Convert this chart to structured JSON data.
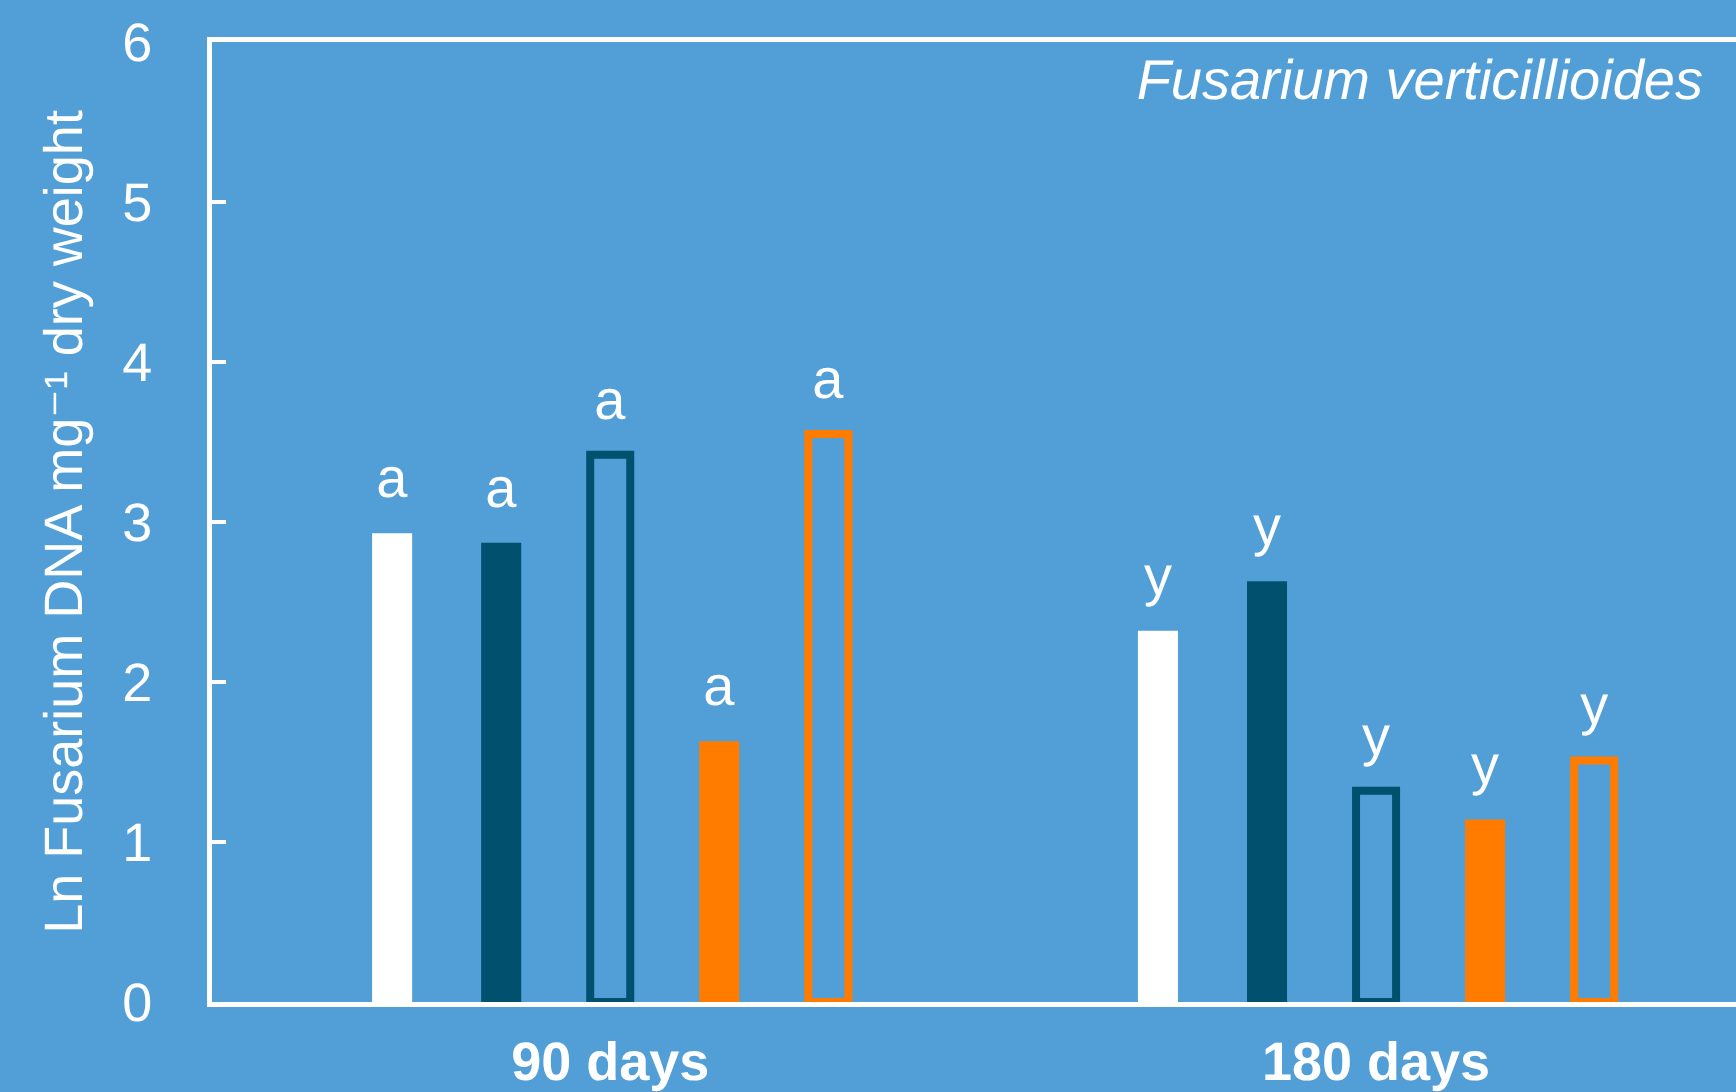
{
  "chart_data": {
    "type": "bar",
    "title": "Fusarium verticillioides",
    "ylabel": "Ln Fusarium DNA mg⁻¹ dry weight",
    "categories": [
      "90 days",
      "180 days"
    ],
    "series": [
      {
        "color": "#ffffff",
        "values": [
          2.93,
          2.32
        ],
        "value_labels": [
          "a",
          "y"
        ]
      },
      {
        "color": "#00506e",
        "values": [
          2.87,
          2.63
        ],
        "value_labels": [
          "a",
          "y"
        ]
      },
      {
        "color": "#00506e",
        "values": [
          3.42,
          1.32
        ],
        "value_labels": [
          "a",
          "y"
        ],
        "line_style": "solid"
      },
      {
        "color": "#ff7c00",
        "values": [
          1.63,
          1.14
        ],
        "value_labels": [
          "a",
          "y"
        ]
      },
      {
        "color": "#ff7c00",
        "values": [
          3.55,
          1.51
        ],
        "value_labels": [
          "a",
          "y"
        ],
        "line_style": "solid"
      }
    ],
    "ylim": [
      0,
      6
    ],
    "yticks": [
      0,
      1,
      2,
      3,
      4,
      5,
      6
    ],
    "grid": false
  }
}
